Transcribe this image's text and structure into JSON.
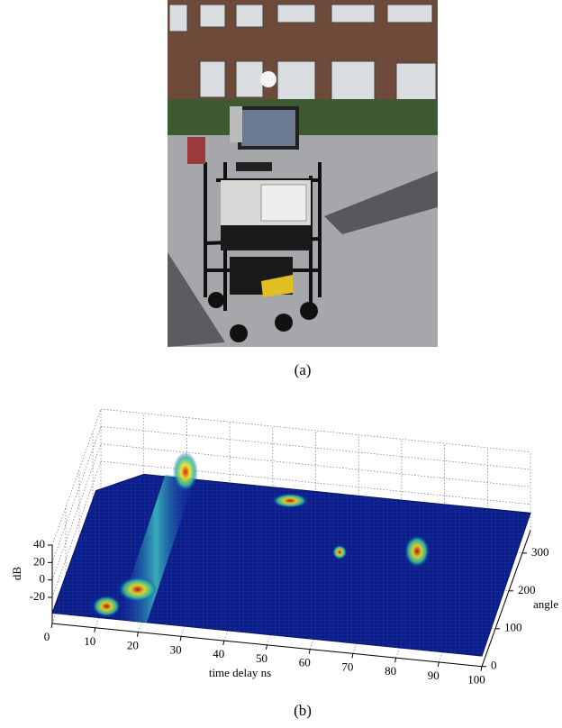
{
  "figure_a": {
    "caption": "(a)"
  },
  "chart_data": {
    "type": "surface",
    "xlabel": "time delay ns",
    "ylabel": "angle",
    "zlabel": "dB",
    "xlim": [
      0,
      100
    ],
    "xticks": [
      0,
      10,
      20,
      30,
      40,
      50,
      60,
      70,
      80,
      90,
      100
    ],
    "ylim": [
      0,
      360
    ],
    "yticks": [
      0,
      100,
      200,
      300
    ],
    "zlim": [
      -50,
      40
    ],
    "zticks": [
      -20,
      0,
      20,
      40
    ],
    "grid": true
  },
  "figure_b": {
    "caption": "(b)"
  }
}
